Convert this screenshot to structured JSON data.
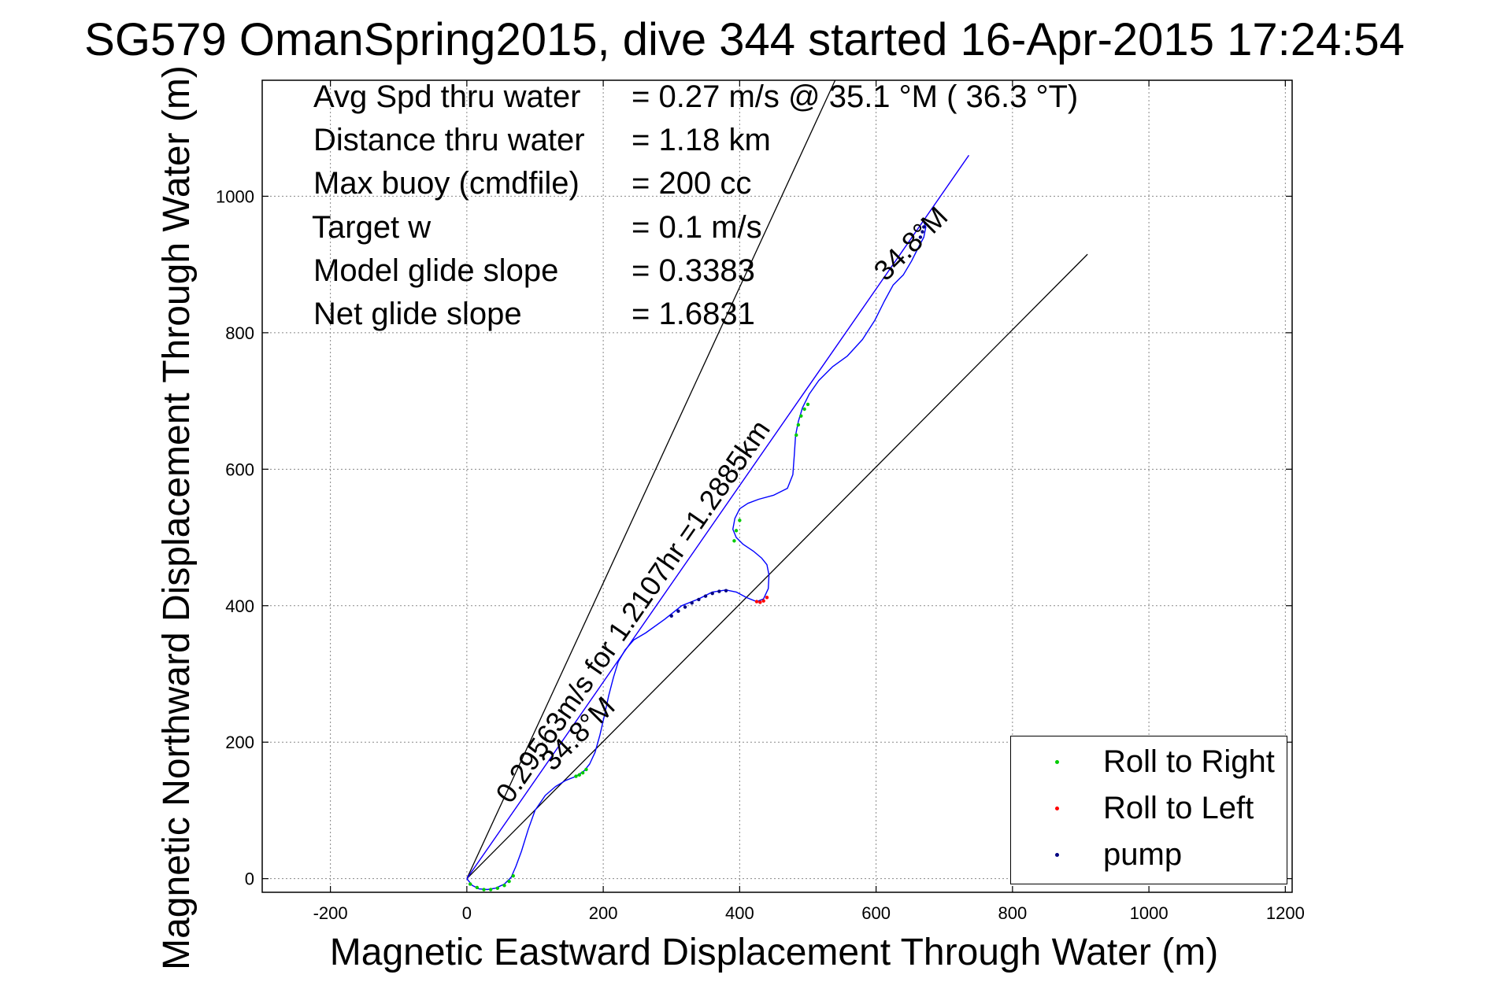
{
  "chart_data": {
    "type": "line",
    "title": "SG579 OmanSpring2015, dive 344 started 16-Apr-2015 17:24:54",
    "xlabel": "Magnetic Eastward Displacement Through Water (m)",
    "ylabel": "Magnetic Northward Displacement Through Water (m)",
    "xlim": [
      -300,
      1210
    ],
    "ylim": [
      -20,
      1170
    ],
    "x_ticks": [
      -200,
      0,
      200,
      400,
      600,
      800,
      1000,
      1200
    ],
    "y_ticks": [
      0,
      200,
      400,
      600,
      800,
      1000
    ],
    "grid": true,
    "legend_position": "bottom-right",
    "stats": [
      {
        "label": "Avg Spd thru water",
        "value": "=  0.27 m/s @  35.1 °M ( 36.3 °T)"
      },
      {
        "label": "Distance thru water",
        "value": "=  1.18 km"
      },
      {
        "label": "Max buoy (cmdfile)",
        "value": "= 200 cc"
      },
      {
        "label": "Target w",
        "value": "= 0.1 m/s"
      },
      {
        "label": "Model glide slope",
        "value": "= 0.3383"
      },
      {
        "label": "Net glide slope",
        "value": "= 1.6831"
      }
    ],
    "reference_lines": [
      {
        "color": "#000000",
        "x": [
          0,
          540
        ],
        "y": [
          0,
          1170
        ]
      },
      {
        "color": "#000000",
        "x": [
          0,
          910
        ],
        "y": [
          0,
          915
        ]
      },
      {
        "color": "#ff00ff",
        "x": [
          0,
          736
        ],
        "y": [
          0,
          1060
        ]
      },
      {
        "color": "#0000ff",
        "x": [
          0,
          736
        ],
        "y": [
          0,
          1060
        ]
      }
    ],
    "annotations": [
      {
        "text": "0.29563m/s for 1.2107hr =1.2885km",
        "x": 64,
        "y": 108,
        "angle": 55.3
      },
      {
        "text": "34.8°M",
        "x": 126,
        "y": 156,
        "angle": 45
      },
      {
        "text": "34.8°M",
        "x": 614,
        "y": 874,
        "angle": 45
      }
    ],
    "series": [
      {
        "name": "track",
        "color": "#0000ff",
        "x": [
          0,
          8,
          18,
          30,
          42,
          55,
          65,
          72,
          80,
          90,
          100,
          115,
          130,
          145,
          160,
          172,
          180,
          188,
          195,
          202,
          208,
          215,
          222,
          232,
          245,
          262,
          290,
          315,
          340,
          360,
          380,
          395,
          410,
          425,
          435,
          442,
          443,
          440,
          432,
          420,
          405,
          395,
          390,
          393,
          400,
          412,
          428,
          450,
          470,
          478,
          480,
          482,
          486,
          492,
          502,
          516,
          536,
          558,
          580,
          598,
          612,
          625,
          640,
          652,
          662,
          670,
          673,
          670,
          668
        ],
        "y": [
          0,
          -10,
          -15,
          -16,
          -14,
          -8,
          2,
          18,
          40,
          72,
          100,
          122,
          135,
          144,
          150,
          158,
          168,
          185,
          210,
          240,
          268,
          295,
          318,
          335,
          350,
          360,
          380,
          400,
          410,
          420,
          423,
          420,
          412,
          406,
          410,
          425,
          445,
          460,
          470,
          480,
          490,
          500,
          512,
          528,
          542,
          550,
          556,
          562,
          572,
          592,
          620,
          650,
          670,
          690,
          710,
          730,
          750,
          766,
          790,
          818,
          846,
          870,
          885,
          905,
          925,
          940,
          955,
          962,
          965
        ]
      }
    ],
    "legend": [
      {
        "name": "Roll to Right",
        "color": "#00cc00"
      },
      {
        "name": "Roll to Left",
        "color": "#ff0000"
      },
      {
        "name": "pump",
        "color": "#000080"
      }
    ],
    "markers": {
      "roll_right_x": [
        5,
        15,
        25,
        35,
        45,
        55,
        62,
        68,
        160,
        165,
        170,
        175,
        392,
        395,
        400,
        483,
        486,
        490,
        495,
        500
      ],
      "roll_right_y": [
        -8,
        -13,
        -16,
        -16,
        -14,
        -10,
        -4,
        4,
        150,
        152,
        155,
        160,
        495,
        510,
        525,
        650,
        665,
        678,
        688,
        695
      ],
      "roll_left_x": [
        425,
        430,
        435,
        440
      ],
      "roll_left_y": [
        406,
        405,
        407,
        412
      ],
      "pump_x": [
        300,
        310,
        320,
        330,
        340,
        350,
        360,
        370,
        380,
        665,
        668,
        670
      ],
      "pump_y": [
        385,
        392,
        398,
        404,
        409,
        414,
        418,
        421,
        422,
        940,
        948,
        955
      ]
    }
  }
}
